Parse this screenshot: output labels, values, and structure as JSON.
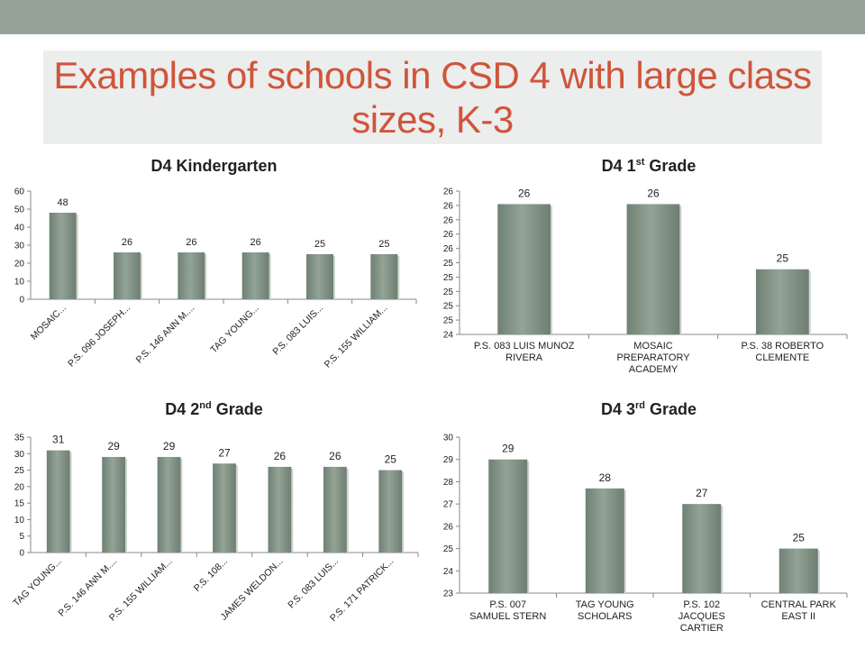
{
  "slide": {
    "title": "Examples of schools in CSD 4 with large class sizes, K-3",
    "colors": {
      "band": "#94a396",
      "title": "#cf553a",
      "title_bg": "#eceded",
      "bar": "#7b8d80"
    }
  },
  "chart_data": [
    {
      "id": "kindergarten",
      "type": "bar",
      "title_main": "D4 Kindergarten",
      "title_sup": "",
      "title_tail": "",
      "categories": [
        "MOSAIC...",
        "P.S. 096 JOSEPH...",
        "P.S. 146 ANN M....",
        "TAG YOUNG...",
        "P.S. 083 LUIS...",
        "P.S. 155 WILLIAM..."
      ],
      "values": [
        48,
        26,
        26,
        26,
        25,
        25
      ],
      "value_labels": [
        "48",
        "26",
        "26",
        "26",
        "25",
        "25"
      ],
      "yticks": [
        "0",
        "10",
        "20",
        "30",
        "40",
        "50",
        "60"
      ],
      "ylim": [
        0,
        60
      ],
      "category_label_style": "rotated"
    },
    {
      "id": "first-grade",
      "type": "bar",
      "title_main": "D4 1",
      "title_sup": "st",
      "title_tail": " Grade",
      "categories": [
        "P.S. 083 LUIS MUNOZ RIVERA",
        "MOSAIC PREPARATORY ACADEMY",
        "P.S. 38 ROBERTO CLEMENTE"
      ],
      "category_lines": [
        [
          "P.S. 083 LUIS MUNOZ",
          "RIVERA"
        ],
        [
          "MOSAIC",
          "PREPARATORY",
          "ACADEMY"
        ],
        [
          "P.S. 38 ROBERTO",
          "CLEMENTE"
        ]
      ],
      "values": [
        26,
        26,
        25
      ],
      "value_labels": [
        "26",
        "26",
        "25"
      ],
      "yticks": [
        "24",
        "25",
        "25",
        "25",
        "25",
        "25",
        "26",
        "26",
        "26",
        "26",
        "26"
      ],
      "ylim": [
        24,
        26.2
      ],
      "category_label_style": "wrapped"
    },
    {
      "id": "second-grade",
      "type": "bar",
      "title_main": "D4 2",
      "title_sup": "nd",
      "title_tail": " Grade",
      "categories": [
        "TAG YOUNG...",
        "P.S. 146 ANN M....",
        "P.S. 155 WILLIAM...",
        "P.S. 108...",
        "JAMES WELDON...",
        "P.S. 083 LUIS...",
        "P.S. 171 PATRICK..."
      ],
      "values": [
        31,
        29,
        29,
        27,
        26,
        26,
        25
      ],
      "value_labels": [
        "31",
        "29",
        "29",
        "27",
        "26",
        "26",
        "25"
      ],
      "yticks": [
        "0",
        "5",
        "10",
        "15",
        "20",
        "25",
        "30",
        "35"
      ],
      "ylim": [
        0,
        35
      ],
      "category_label_style": "rotated"
    },
    {
      "id": "third-grade",
      "type": "bar",
      "title_main": "D4 3",
      "title_sup": "rd",
      "title_tail": " Grade",
      "categories": [
        "P.S. 007 SAMUEL STERN",
        "TAG YOUNG SCHOLARS",
        "P.S. 102 JACQUES CARTIER",
        "CENTRAL PARK EAST II"
      ],
      "category_lines": [
        [
          "P.S. 007",
          "SAMUEL STERN"
        ],
        [
          "TAG YOUNG",
          "SCHOLARS"
        ],
        [
          "P.S. 102",
          "JACQUES",
          "CARTIER"
        ],
        [
          "CENTRAL PARK",
          "EAST II"
        ]
      ],
      "values": [
        29,
        27.7,
        27,
        25
      ],
      "value_labels": [
        "29",
        "28",
        "27",
        "25"
      ],
      "yticks": [
        "23",
        "24",
        "25",
        "26",
        "27",
        "28",
        "29",
        "30"
      ],
      "ylim": [
        23,
        30
      ],
      "category_label_style": "wrapped"
    }
  ]
}
